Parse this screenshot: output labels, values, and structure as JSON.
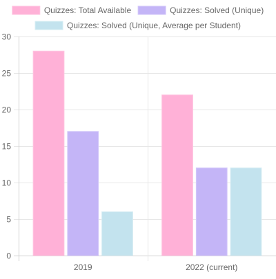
{
  "chart_data": {
    "type": "bar",
    "categories": [
      "2019",
      "2022 (current)"
    ],
    "series": [
      {
        "name": "Quizzes: Total Available",
        "values": [
          28,
          22
        ],
        "color": "#ffb1d7",
        "border": "#ffc4e0"
      },
      {
        "name": "Quizzes: Solved (Unique)",
        "values": [
          17,
          12
        ],
        "color": "#c4b5f7",
        "border": "#d3c8fa"
      },
      {
        "name": "Quizzes: Solved (Unique, Average per Student)",
        "values": [
          6,
          12
        ],
        "color": "#c3e3ee",
        "border": "#d5ecf3"
      }
    ],
    "y_ticks": [
      0,
      5,
      10,
      15,
      20,
      25,
      30
    ],
    "ylim": [
      0,
      30
    ],
    "grid": true,
    "legend_position": "top"
  }
}
